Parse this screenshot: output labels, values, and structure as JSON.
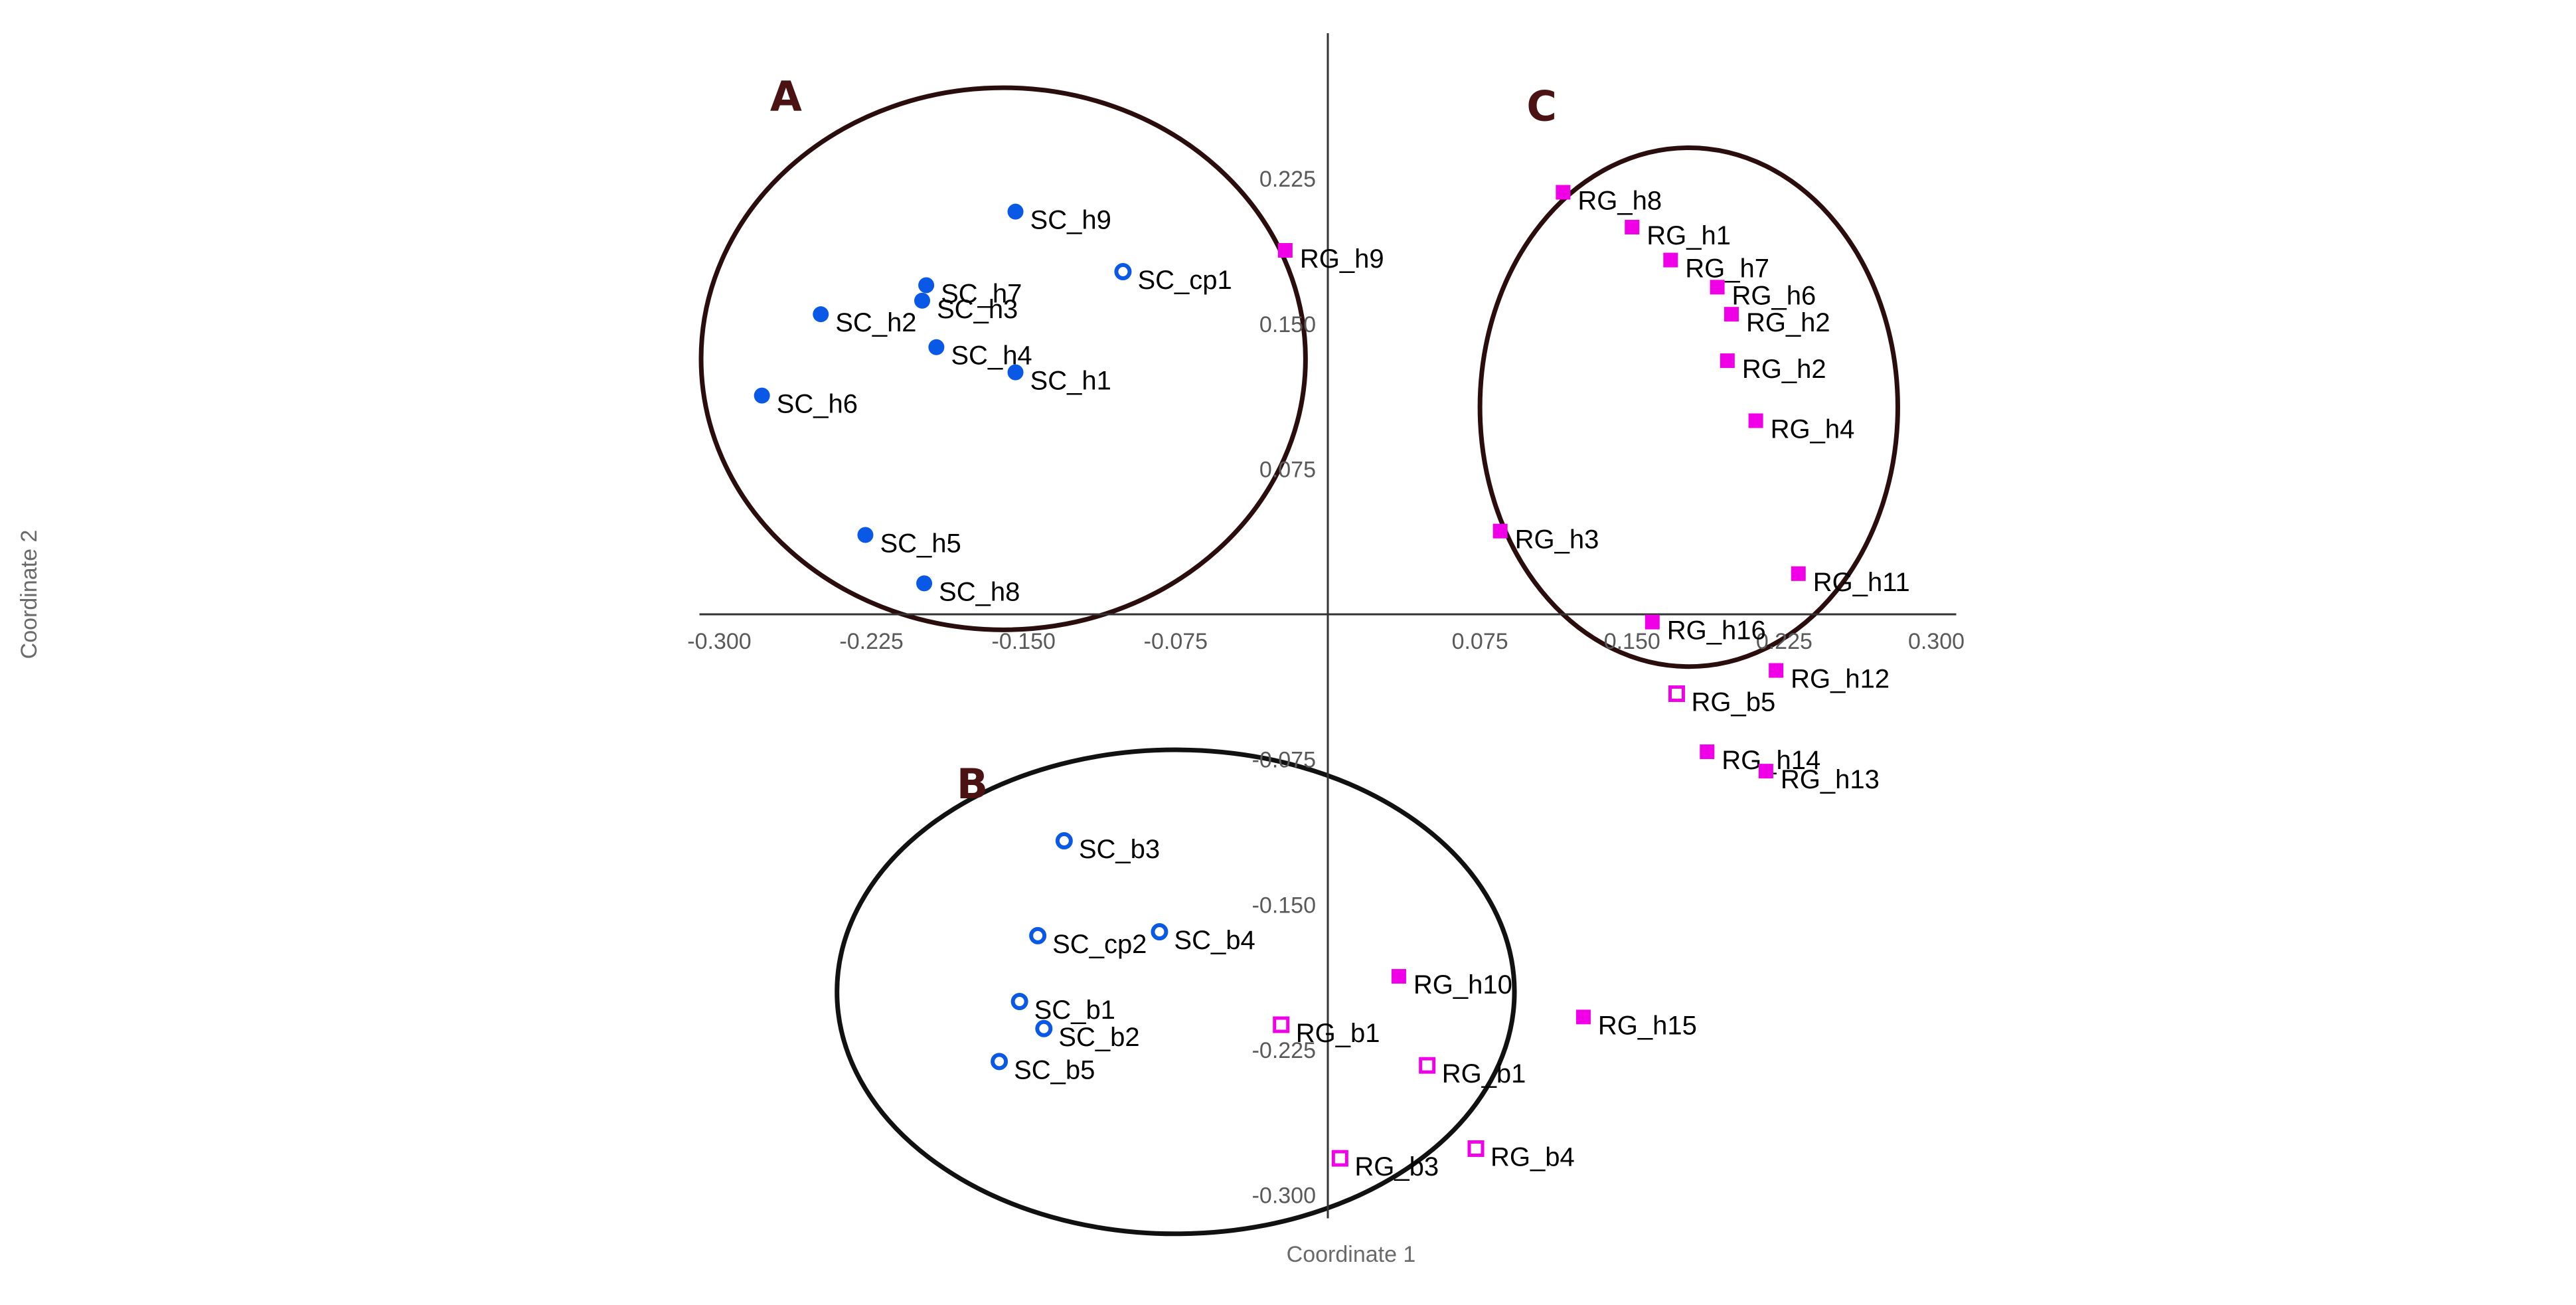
{
  "chart_data": {
    "type": "scatter",
    "xlabel": "Coordinate 1",
    "ylabel": "Coordinate 2",
    "xlim": [
      -0.3,
      0.3
    ],
    "ylim": [
      -0.3,
      0.3
    ],
    "x_ticks": [
      "-0.300",
      "-0.225",
      "-0.150",
      "-0.075",
      "0.075",
      "0.150",
      "0.225",
      "0.300"
    ],
    "y_ticks": [
      "0.225",
      "0.150",
      "0.075",
      "-0.075",
      "-0.150",
      "-0.225",
      "-0.300"
    ],
    "grid": false,
    "colors": {
      "sc": "#0a59e6",
      "rg": "#f000e6",
      "ellipse_ac": "#2a0d0d",
      "ellipse_b": "#111111"
    },
    "groups": [
      {
        "label": "A",
        "center": [
          -0.16,
          0.132
        ],
        "radii": [
          0.149,
          0.14
        ]
      },
      {
        "label": "B",
        "center": [
          -0.075,
          -0.195
        ],
        "radii": [
          0.167,
          0.125
        ]
      },
      {
        "label": "C",
        "center": [
          0.178,
          0.107
        ],
        "radii": [
          0.103,
          0.134
        ]
      }
    ],
    "series": [
      {
        "marker": "filled-circle",
        "color": "#0a59e6",
        "points": [
          {
            "label": "SC_h9",
            "x": -0.154,
            "y": 0.208
          },
          {
            "label": "SC_h7",
            "x": -0.198,
            "y": 0.17
          },
          {
            "label": "SC_h2",
            "x": -0.25,
            "y": 0.155
          },
          {
            "label": "SC_h3",
            "x": -0.2,
            "y": 0.162
          },
          {
            "label": "SC_h4",
            "x": -0.193,
            "y": 0.138
          },
          {
            "label": "SC_h1",
            "x": -0.154,
            "y": 0.125
          },
          {
            "label": "SC_h6",
            "x": -0.279,
            "y": 0.113
          },
          {
            "label": "SC_h5",
            "x": -0.228,
            "y": 0.041
          },
          {
            "label": "SC_h8",
            "x": -0.199,
            "y": 0.016
          }
        ]
      },
      {
        "marker": "open-circle",
        "color": "#0a59e6",
        "points": [
          {
            "label": "SC_cp1",
            "x": -0.101,
            "y": 0.177
          },
          {
            "label": "SC_b3",
            "x": -0.13,
            "y": -0.117
          },
          {
            "label": "SC_cp2",
            "x": -0.143,
            "y": -0.166
          },
          {
            "label": "SC_b4",
            "x": -0.083,
            "y": -0.164
          },
          {
            "label": "SC_b1",
            "x": -0.152,
            "y": -0.2
          },
          {
            "label": "SC_b2",
            "x": -0.14,
            "y": -0.214
          },
          {
            "label": "SC_b5",
            "x": -0.162,
            "y": -0.231
          }
        ]
      },
      {
        "marker": "filled-square",
        "color": "#f000e6",
        "points": [
          {
            "label": "RG_h9",
            "x": -0.021,
            "y": 0.188
          },
          {
            "label": "RG_h8",
            "x": 0.116,
            "y": 0.218
          },
          {
            "label": "RG_h1",
            "x": 0.15,
            "y": 0.2
          },
          {
            "label": "RG_h7",
            "x": 0.169,
            "y": 0.183
          },
          {
            "label": "RG_h6",
            "x": 0.192,
            "y": 0.169
          },
          {
            "label": "RG_h2",
            "x": 0.199,
            "y": 0.155
          },
          {
            "label": "RG_h2",
            "x": 0.197,
            "y": 0.131
          },
          {
            "label": "RG_h4",
            "x": 0.211,
            "y": 0.1
          },
          {
            "label": "RG_h3",
            "x": 0.085,
            "y": 0.043
          },
          {
            "label": "RG_h11",
            "x": 0.232,
            "y": 0.021
          },
          {
            "label": "RG_h16",
            "x": 0.16,
            "y": -0.004
          },
          {
            "label": "RG_h12",
            "x": 0.221,
            "y": -0.029
          },
          {
            "label": "RG_h14",
            "x": 0.187,
            "y": -0.071
          },
          {
            "label": "RG_h13",
            "x": 0.216,
            "y": -0.081
          },
          {
            "label": "RG_h10",
            "x": 0.035,
            "y": -0.187
          },
          {
            "label": "RG_h15",
            "x": 0.126,
            "y": -0.208
          }
        ]
      },
      {
        "marker": "open-square",
        "color": "#f000e6",
        "points": [
          {
            "label": "RG_b5",
            "x": 0.172,
            "y": -0.041
          },
          {
            "label": "RG_b1",
            "x": -0.023,
            "y": -0.212
          },
          {
            "label": "RG_b1",
            "x": 0.049,
            "y": -0.233
          },
          {
            "label": "RG_b3",
            "x": 0.006,
            "y": -0.281
          },
          {
            "label": "RG_b4",
            "x": 0.073,
            "y": -0.276
          }
        ]
      }
    ]
  }
}
